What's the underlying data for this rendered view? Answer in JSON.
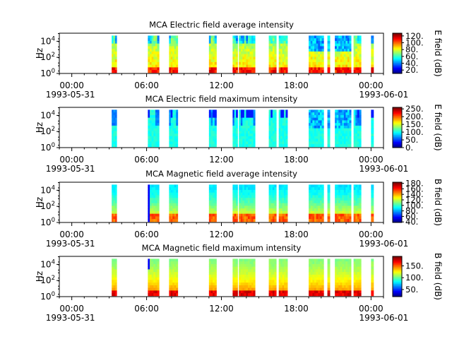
{
  "chart_data": [
    {
      "type": "heatmap",
      "title": "MCA  Electric field average intensity",
      "ylabel": "Hz",
      "yscale": "log",
      "ylim": [
        1,
        100000
      ],
      "y_ticks": [
        {
          "base": "10",
          "exp": "0"
        },
        {
          "base": "10",
          "exp": "2"
        },
        {
          "base": "10",
          "exp": "4"
        }
      ],
      "x_ticks": [
        "00:00",
        "06:00",
        "12:00",
        "18:00",
        "00:00"
      ],
      "x_dates": [
        "1993-05-31",
        "1993-06-01"
      ],
      "xlim_hours": [
        -1,
        25
      ],
      "colorbar": {
        "label": "E field (dB)",
        "range": [
          10,
          128
        ],
        "ticks": [
          "20.",
          "40.",
          "60.",
          "80.",
          "100.",
          "120."
        ],
        "tick_values": [
          20,
          40,
          60,
          80,
          100,
          120
        ]
      },
      "data_intervals_hours": [
        [
          3.2,
          3.6
        ],
        [
          6.1,
          7.0
        ],
        [
          7.8,
          8.5
        ],
        [
          11.0,
          11.6
        ],
        [
          12.9,
          13.3
        ],
        [
          13.4,
          14.7
        ],
        [
          15.8,
          16.4
        ],
        [
          16.6,
          17.3
        ],
        [
          19.0,
          20.2
        ],
        [
          20.5,
          20.7
        ],
        [
          21.1,
          22.4
        ],
        [
          22.6,
          23.2
        ],
        [
          24.0,
          24.2
        ]
      ],
      "color_profile": "average_e"
    },
    {
      "type": "heatmap",
      "title": "MCA  Electric field maximum intensity",
      "ylabel": "Hz",
      "yscale": "log",
      "ylim": [
        1,
        100000
      ],
      "y_ticks": [
        {
          "base": "10",
          "exp": "0"
        },
        {
          "base": "10",
          "exp": "2"
        },
        {
          "base": "10",
          "exp": "4"
        }
      ],
      "x_ticks": [
        "00:00",
        "06:00",
        "12:00",
        "18:00",
        "00:00"
      ],
      "x_dates": [
        "1993-05-31",
        "1993-06-01"
      ],
      "xlim_hours": [
        -1,
        25
      ],
      "colorbar": {
        "label": "E field (dB)",
        "range": [
          0,
          260
        ],
        "ticks": [
          "0.",
          "50.",
          "100.",
          "150.",
          "200.",
          "250."
        ],
        "tick_values": [
          0,
          50,
          100,
          150,
          200,
          250
        ]
      },
      "data_intervals_hours": [
        [
          3.2,
          3.6
        ],
        [
          6.1,
          7.0
        ],
        [
          7.8,
          8.5
        ],
        [
          11.0,
          11.6
        ],
        [
          12.9,
          13.3
        ],
        [
          13.4,
          14.7
        ],
        [
          15.8,
          16.4
        ],
        [
          16.6,
          17.3
        ],
        [
          19.0,
          20.2
        ],
        [
          20.5,
          20.7
        ],
        [
          21.1,
          22.4
        ],
        [
          22.6,
          23.2
        ],
        [
          24.0,
          24.2
        ]
      ],
      "color_profile": "maximum_e"
    },
    {
      "type": "heatmap",
      "title": "MCA  Magnetic field average intensity",
      "ylabel": "Hz",
      "yscale": "log",
      "ylim": [
        1,
        100000
      ],
      "y_ticks": [
        {
          "base": "10",
          "exp": "0"
        },
        {
          "base": "10",
          "exp": "2"
        },
        {
          "base": "10",
          "exp": "4"
        }
      ],
      "x_ticks": [
        "00:00",
        "06:00",
        "12:00",
        "18:00",
        "00:00"
      ],
      "x_dates": [
        "1993-05-31",
        "1993-06-01"
      ],
      "xlim_hours": [
        -1,
        25
      ],
      "colorbar": {
        "label": "B field (dB)",
        "range": [
          38,
          184
        ],
        "ticks": [
          "40.",
          "60.",
          "80.",
          "100.",
          "120.",
          "140.",
          "160.",
          "180."
        ],
        "tick_values": [
          40,
          60,
          80,
          100,
          120,
          140,
          160,
          180
        ]
      },
      "data_intervals_hours": [
        [
          3.2,
          3.6
        ],
        [
          6.1,
          7.0
        ],
        [
          7.8,
          8.5
        ],
        [
          11.0,
          11.6
        ],
        [
          12.9,
          13.3
        ],
        [
          13.4,
          14.7
        ],
        [
          15.8,
          16.4
        ],
        [
          16.6,
          17.3
        ],
        [
          19.0,
          20.2
        ],
        [
          20.5,
          20.7
        ],
        [
          21.1,
          22.4
        ],
        [
          22.6,
          23.2
        ],
        [
          24.0,
          24.2
        ]
      ],
      "color_profile": "average_b"
    },
    {
      "type": "heatmap",
      "title": "MCA  Magnetic field maximum intensity",
      "ylabel": "Hz",
      "yscale": "log",
      "ylim": [
        1,
        100000
      ],
      "y_ticks": [
        {
          "base": "10",
          "exp": "0"
        },
        {
          "base": "10",
          "exp": "2"
        },
        {
          "base": "10",
          "exp": "4"
        }
      ],
      "x_ticks": [
        "00:00",
        "06:00",
        "12:00",
        "18:00",
        "00:00"
      ],
      "x_dates": [
        "1993-05-31",
        "1993-06-01"
      ],
      "xlim_hours": [
        -1,
        25
      ],
      "colorbar": {
        "label": "B field (dB)",
        "range": [
          20,
          190
        ],
        "ticks": [
          "50.",
          "100.",
          "150."
        ],
        "tick_values": [
          50,
          100,
          150
        ]
      },
      "data_intervals_hours": [
        [
          3.2,
          3.6
        ],
        [
          6.1,
          7.0
        ],
        [
          7.8,
          8.5
        ],
        [
          11.0,
          11.6
        ],
        [
          12.9,
          13.3
        ],
        [
          13.4,
          14.7
        ],
        [
          15.8,
          16.4
        ],
        [
          16.6,
          17.3
        ],
        [
          19.0,
          20.2
        ],
        [
          20.5,
          20.7
        ],
        [
          21.1,
          22.4
        ],
        [
          22.6,
          23.2
        ],
        [
          24.0,
          24.2
        ]
      ],
      "color_profile": "maximum_b"
    }
  ]
}
